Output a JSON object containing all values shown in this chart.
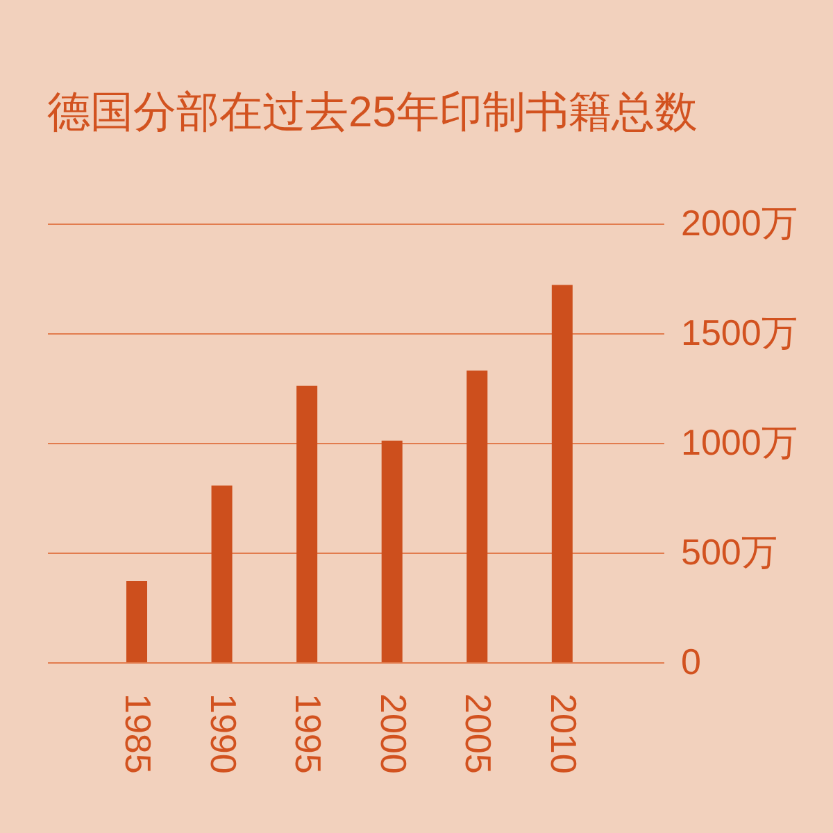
{
  "chart_data": {
    "type": "bar",
    "title": "德国分部在过去25年印制书籍总数",
    "categories": [
      "1985",
      "1990",
      "1995",
      "2000",
      "2005",
      "2010"
    ],
    "values": [
      370,
      805,
      1260,
      1010,
      1330,
      1720
    ],
    "color": "#cd4f1d",
    "ylim": [
      0,
      2000
    ],
    "yticks": [
      0,
      {
        "value": 500,
        "label": "500万"
      },
      {
        "value": 1000,
        "label": "1000万"
      },
      {
        "value": 1500,
        "label": "1500万"
      },
      {
        "value": 2000,
        "label": "2000万"
      }
    ],
    "grid": "y"
  }
}
